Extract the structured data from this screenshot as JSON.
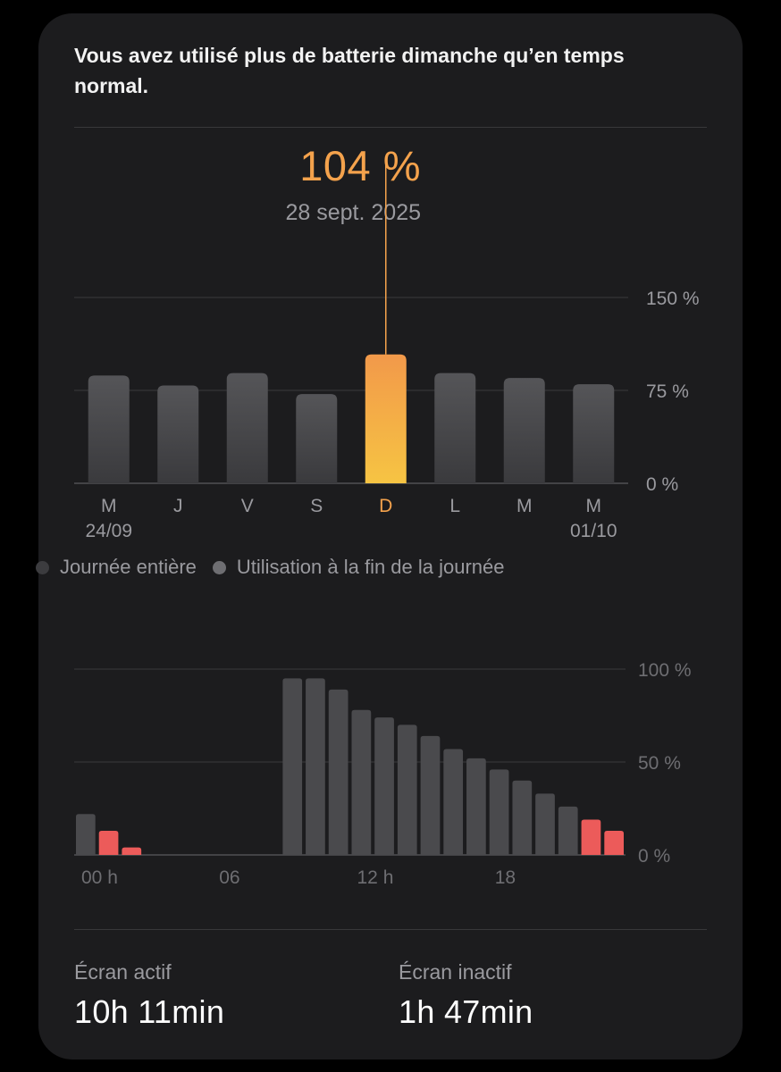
{
  "card": {
    "headline": "Vous avez utilisé plus de batterie dimanche qu’en temps normal."
  },
  "selection": {
    "value": "104 %",
    "date": "28 sept. 2025"
  },
  "legend": {
    "full_day": "Journée entière",
    "end_of_day": "Utilisation à la fin de la journée"
  },
  "stats": {
    "screen_on_label": "Écran actif",
    "screen_on_value": "10h 11min",
    "screen_off_label": "Écran inactif",
    "screen_off_value": "1h 47min"
  },
  "colors": {
    "bar": "#4a4a4d",
    "selected_top": "#f2994a",
    "selected_bottom": "#f6c443",
    "low_battery": "#ec5b5a",
    "gridline": "#3a3a3c"
  },
  "chart_data": [
    {
      "type": "bar",
      "categories": [
        "M",
        "J",
        "V",
        "S",
        "D",
        "L",
        "M",
        "M"
      ],
      "sublabels": [
        "24/09",
        "",
        "",
        "",
        "",
        "",
        "",
        "01/10"
      ],
      "values": [
        87,
        79,
        89,
        72,
        104,
        89,
        85,
        80
      ],
      "selected_index": 4,
      "ylim": [
        0,
        150
      ],
      "yticks": [
        "0 %",
        "75 %",
        "150 %"
      ],
      "ytick_values": [
        0,
        75,
        150
      ]
    },
    {
      "type": "bar",
      "x_ticks": [
        "00 h",
        "06",
        "12 h",
        "18"
      ],
      "x_tick_hours": [
        0,
        6,
        12,
        18
      ],
      "values": [
        22,
        13,
        4,
        0,
        0,
        0,
        0,
        0,
        0,
        95,
        95,
        89,
        78,
        74,
        70,
        64,
        57,
        52,
        46,
        40,
        33,
        26,
        19,
        13
      ],
      "low_flags": [
        false,
        true,
        true,
        false,
        false,
        false,
        false,
        false,
        false,
        false,
        false,
        false,
        false,
        false,
        false,
        false,
        false,
        false,
        false,
        false,
        false,
        false,
        true,
        true
      ],
      "ylim": [
        0,
        100
      ],
      "yticks": [
        "0 %",
        "50 %",
        "100 %"
      ],
      "ytick_values": [
        0,
        50,
        100
      ]
    }
  ]
}
